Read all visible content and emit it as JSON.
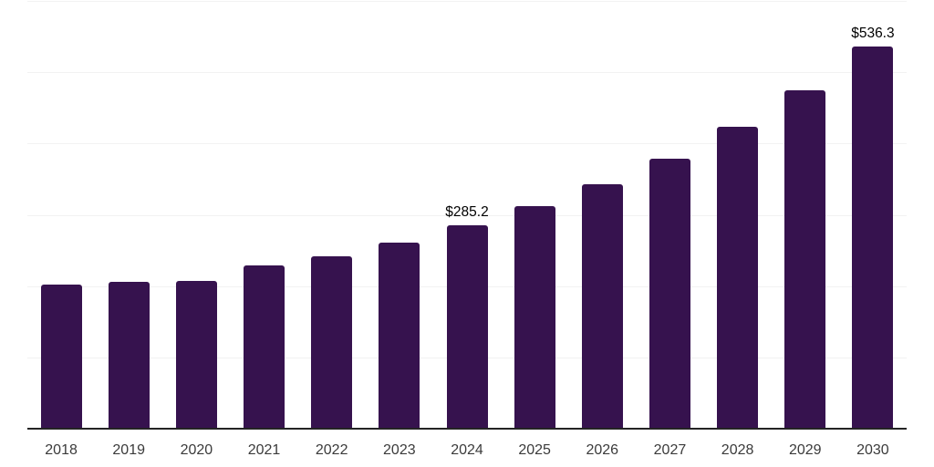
{
  "chart_data": {
    "type": "bar",
    "title": "",
    "xlabel": "",
    "ylabel": "",
    "categories": [
      "2018",
      "2019",
      "2020",
      "2021",
      "2022",
      "2023",
      "2024",
      "2025",
      "2026",
      "2027",
      "2028",
      "2029",
      "2030"
    ],
    "values": [
      202.4,
      205.5,
      207.3,
      229.0,
      241.8,
      261.4,
      285.2,
      312.2,
      342.4,
      378.7,
      423.0,
      474.6,
      536.3
    ],
    "annotations": [
      {
        "category": "2024",
        "label": "$285.2"
      },
      {
        "category": "2030",
        "label": "$536.3"
      }
    ],
    "ylim": [
      0,
      600
    ],
    "grid_step": 100,
    "grid": true,
    "legend": false,
    "y_tick_labels_visible": false,
    "colors": {
      "bar": "#36124E",
      "gridline": "#F2F2F2",
      "axis_line": "#242424",
      "tick_label": "#3B3B3B",
      "data_label": "#000000",
      "background": "#FFFFFF"
    }
  }
}
